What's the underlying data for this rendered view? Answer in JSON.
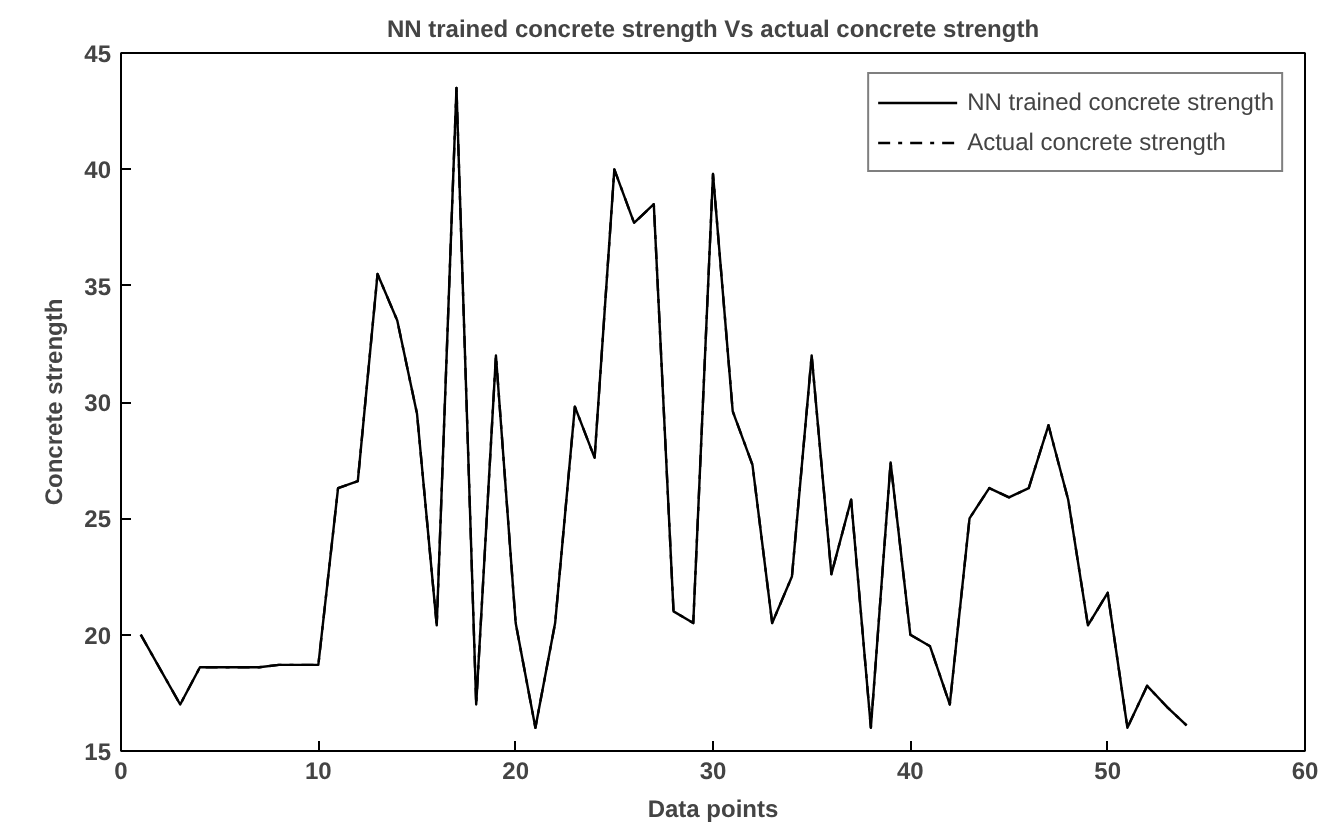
{
  "chart_data": {
    "type": "line",
    "title": "NN trained concrete strength Vs actual concrete strength",
    "xlabel": "Data points",
    "ylabel": "Concrete strength",
    "x": [
      1,
      2,
      3,
      4,
      5,
      6,
      7,
      8,
      9,
      10,
      11,
      12,
      13,
      14,
      15,
      16,
      17,
      18,
      19,
      20,
      21,
      22,
      23,
      24,
      25,
      26,
      27,
      28,
      29,
      30,
      31,
      32,
      33,
      34,
      35,
      36,
      37,
      38,
      39,
      40,
      41,
      42,
      43,
      44,
      45,
      46,
      47,
      48,
      49,
      50,
      51,
      52,
      53,
      54
    ],
    "series": [
      {
        "name": "NN trained concrete strength",
        "color": "#000000",
        "line_style": "solid",
        "values": [
          20,
          18.5,
          17,
          18.6,
          18.6,
          18.6,
          18.6,
          18.7,
          18.7,
          18.7,
          26.3,
          26.6,
          35.5,
          33.5,
          29.5,
          20.4,
          43.5,
          17,
          32,
          20.5,
          16,
          20.5,
          29.8,
          27.6,
          40,
          37.7,
          38.5,
          21,
          20.5,
          39.8,
          29.6,
          27.3,
          20.5,
          22.5,
          32,
          22.6,
          25.8,
          16,
          27.4,
          20,
          19.5,
          17,
          25,
          26.3,
          25.9,
          26.3,
          29,
          25.8,
          20.4,
          21.8,
          16,
          17.8,
          16.9,
          16.1
        ]
      },
      {
        "name": "Actual concrete strength",
        "color": "#000000",
        "line_style": "dashdot",
        "values": [
          20,
          18.5,
          17,
          18.6,
          18.6,
          18.6,
          18.6,
          18.7,
          18.7,
          18.7,
          26.3,
          26.6,
          35.5,
          33.5,
          29.5,
          20.4,
          43.5,
          17,
          32,
          20.5,
          16,
          20.5,
          29.8,
          27.6,
          40,
          37.7,
          38.5,
          21,
          20.5,
          39.8,
          29.6,
          27.3,
          20.5,
          22.5,
          32,
          22.6,
          25.8,
          16,
          27.4,
          20,
          19.5,
          17,
          25,
          26.3,
          25.9,
          26.3,
          29,
          25.8,
          20.4,
          21.8,
          16,
          17.8,
          16.9,
          16.1
        ]
      }
    ],
    "xlim": [
      0,
      60
    ],
    "xticks": [
      0,
      10,
      20,
      30,
      40,
      50,
      60
    ],
    "ylim": [
      15,
      45
    ],
    "yticks": [
      15,
      20,
      25,
      30,
      35,
      40,
      45
    ],
    "grid": false,
    "legend": "top right"
  }
}
